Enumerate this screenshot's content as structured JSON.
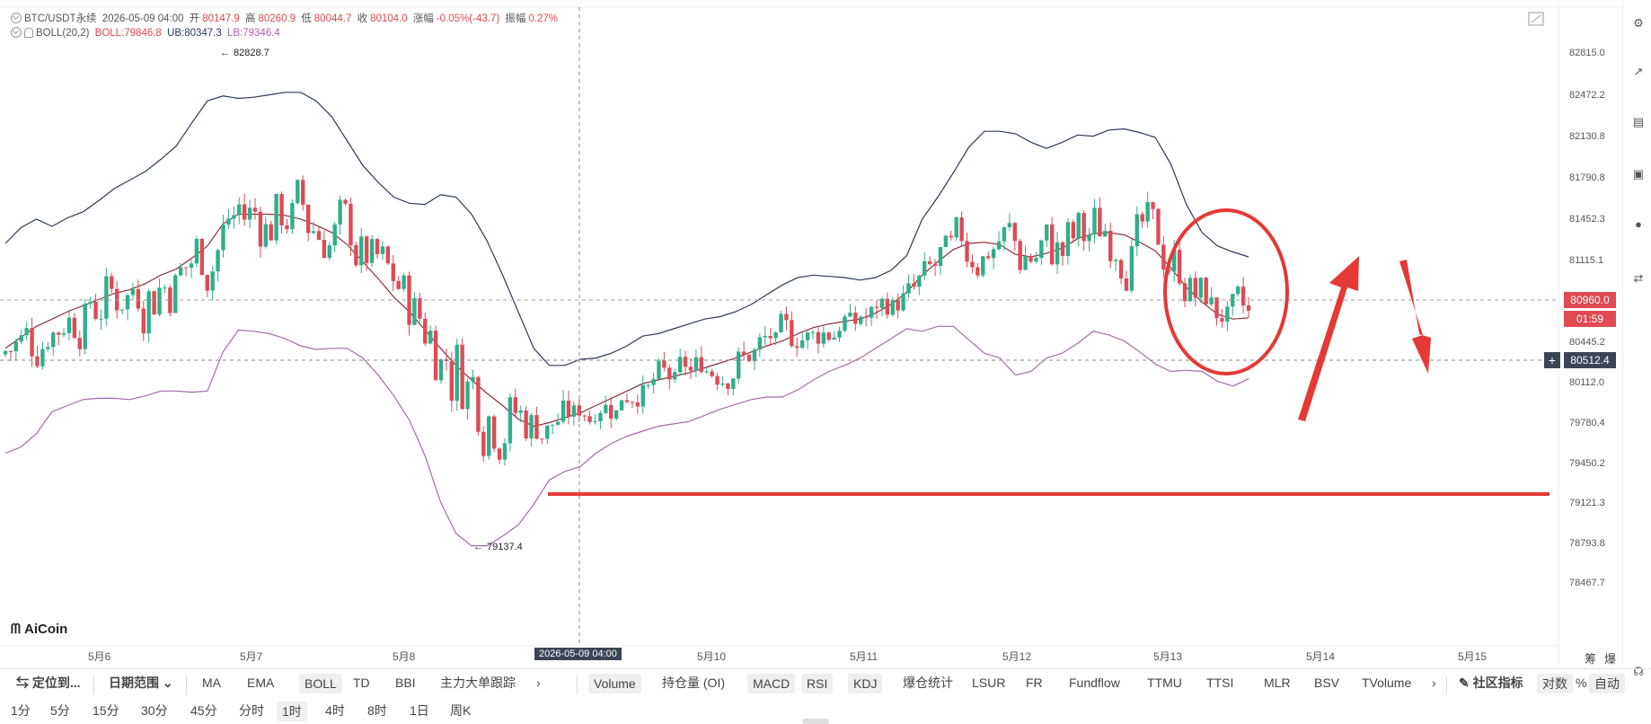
{
  "header": {
    "pair": "BTC/USDT永续",
    "datetime": "2026-05-09 04:00",
    "open_label": "开",
    "open": "80147.9",
    "high_label": "高",
    "high": "80260.9",
    "low_label": "低",
    "low": "80044.7",
    "close_label": "收",
    "close": "80104.0",
    "change_label": "涨幅",
    "change": "-0.05%(-43.7)",
    "amp_label": "振幅",
    "amp": "0.27%"
  },
  "boll": {
    "name": "BOLL(20,2)",
    "mid": "BOLL:79846.8",
    "ub": "UB:80347.3",
    "lb": "LB:79346.4"
  },
  "annotations": {
    "high_mark": "82828.7",
    "low_mark": "79137.4",
    "crosshair_time": "2026-05-09 04:00"
  },
  "price_axis": {
    "ticks": [
      "82815.0",
      "82472.2",
      "82130.8",
      "81790.8",
      "81452.3",
      "81115.1",
      "80445.2",
      "80112.0",
      "79780.4",
      "79450.2",
      "79121.3",
      "78793.8",
      "78467.7"
    ],
    "last_price": "80960.0",
    "countdown": "01:59",
    "crosshair_price": "80512.4"
  },
  "time_axis": {
    "ticks": [
      "5月6",
      "5月7",
      "5月8",
      "5月10",
      "5月11",
      "5月12",
      "5月13",
      "5月14",
      "5月15"
    ]
  },
  "logo": "AiCoin",
  "colors": {
    "up": "#2fae8b",
    "down": "#dd4b55",
    "mid": "#8a2f3a",
    "ub": "#2b3a58",
    "lb": "#a56aa8",
    "drawing": "#e53935"
  },
  "toolbar1": {
    "locate": "定位到...",
    "range": "日期范围",
    "indicators_main": [
      "MA",
      "EMA",
      "BOLL",
      "TD",
      "BBI",
      "主力大单跟踪"
    ],
    "indicators_sub": [
      "Volume",
      "持仓量 (OI)",
      "MACD",
      "RSI",
      "KDJ",
      "爆仓统计",
      "LSUR",
      "FR",
      "Fundflow",
      "TTMU",
      "TTSI",
      "MLR",
      "BSV",
      "TVolume"
    ],
    "community": "社区指标",
    "log": "对数",
    "percent": "%",
    "auto": "自动"
  },
  "toolbar2": {
    "intervals": [
      "1分",
      "5分",
      "15分",
      "30分",
      "45分",
      "分时",
      "1时",
      "4时",
      "8时",
      "1日",
      "周K"
    ],
    "active": "1时"
  },
  "right_strip": {
    "top_labels": [
      "筹",
      "爆"
    ]
  },
  "chart_data": {
    "type": "candlestick",
    "interval": "1时",
    "upper_band": [
      81260,
      81390,
      81460,
      81400,
      81470,
      81520,
      81610,
      81710,
      81780,
      81850,
      81950,
      82060,
      82250,
      82430,
      82470,
      82450,
      82460,
      82480,
      82500,
      82500,
      82430,
      82300,
      82100,
      81900,
      81760,
      81640,
      81590,
      81580,
      81660,
      81640,
      81500,
      81280,
      81000,
      80700,
      80400,
      80260,
      80260,
      80310,
      80320,
      80360,
      80420,
      80500,
      80520,
      80560,
      80600,
      80640,
      80660,
      80700,
      80760,
      80840,
      80920,
      80980,
      81000,
      80990,
      80980,
      80960,
      80980,
      81040,
      81160,
      81460,
      81640,
      81840,
      82050,
      82180,
      82180,
      82160,
      82090,
      82040,
      82090,
      82150,
      82140,
      82190,
      82200,
      82170,
      82130,
      81910,
      81580,
      81350,
      81240,
      81190,
      81150
    ],
    "middle_band": [
      80400,
      80490,
      80580,
      80640,
      80700,
      80750,
      80800,
      80850,
      80880,
      80930,
      81000,
      81050,
      81140,
      81240,
      81420,
      81500,
      81500,
      81500,
      81490,
      81460,
      81410,
      81350,
      81250,
      81110,
      80970,
      80820,
      80700,
      80550,
      80400,
      80260,
      80140,
      80030,
      79930,
      79820,
      79760,
      79790,
      79830,
      79870,
      79930,
      79990,
      80050,
      80110,
      80140,
      80170,
      80200,
      80240,
      80280,
      80320,
      80370,
      80420,
      80460,
      80520,
      80570,
      80600,
      80620,
      80640,
      80690,
      80760,
      80860,
      81000,
      81110,
      81210,
      81260,
      81270,
      81250,
      81170,
      81150,
      81180,
      81220,
      81300,
      81340,
      81350,
      81330,
      81270,
      81200,
      81060,
      80900,
      80780,
      80680,
      80640,
      80650
    ],
    "lower_band": [
      79540,
      79590,
      79700,
      79880,
      79930,
      79980,
      79990,
      79990,
      79980,
      80010,
      80050,
      80050,
      80040,
      80050,
      80370,
      80550,
      80540,
      80520,
      80480,
      80420,
      80390,
      80400,
      80400,
      80320,
      80180,
      80010,
      79810,
      79520,
      79140,
      78880,
      78780,
      78780,
      78860,
      78950,
      79120,
      79320,
      79390,
      79430,
      79540,
      79620,
      79680,
      79720,
      79760,
      79780,
      79800,
      79850,
      79900,
      79940,
      79980,
      80000,
      80000,
      80060,
      80140,
      80210,
      80260,
      80320,
      80400,
      80480,
      80560,
      80540,
      80580,
      80580,
      80470,
      80360,
      80320,
      80180,
      80210,
      80320,
      80360,
      80440,
      80540,
      80510,
      80460,
      80370,
      80270,
      80210,
      80220,
      80210,
      80130,
      80090,
      80150
    ]
  }
}
